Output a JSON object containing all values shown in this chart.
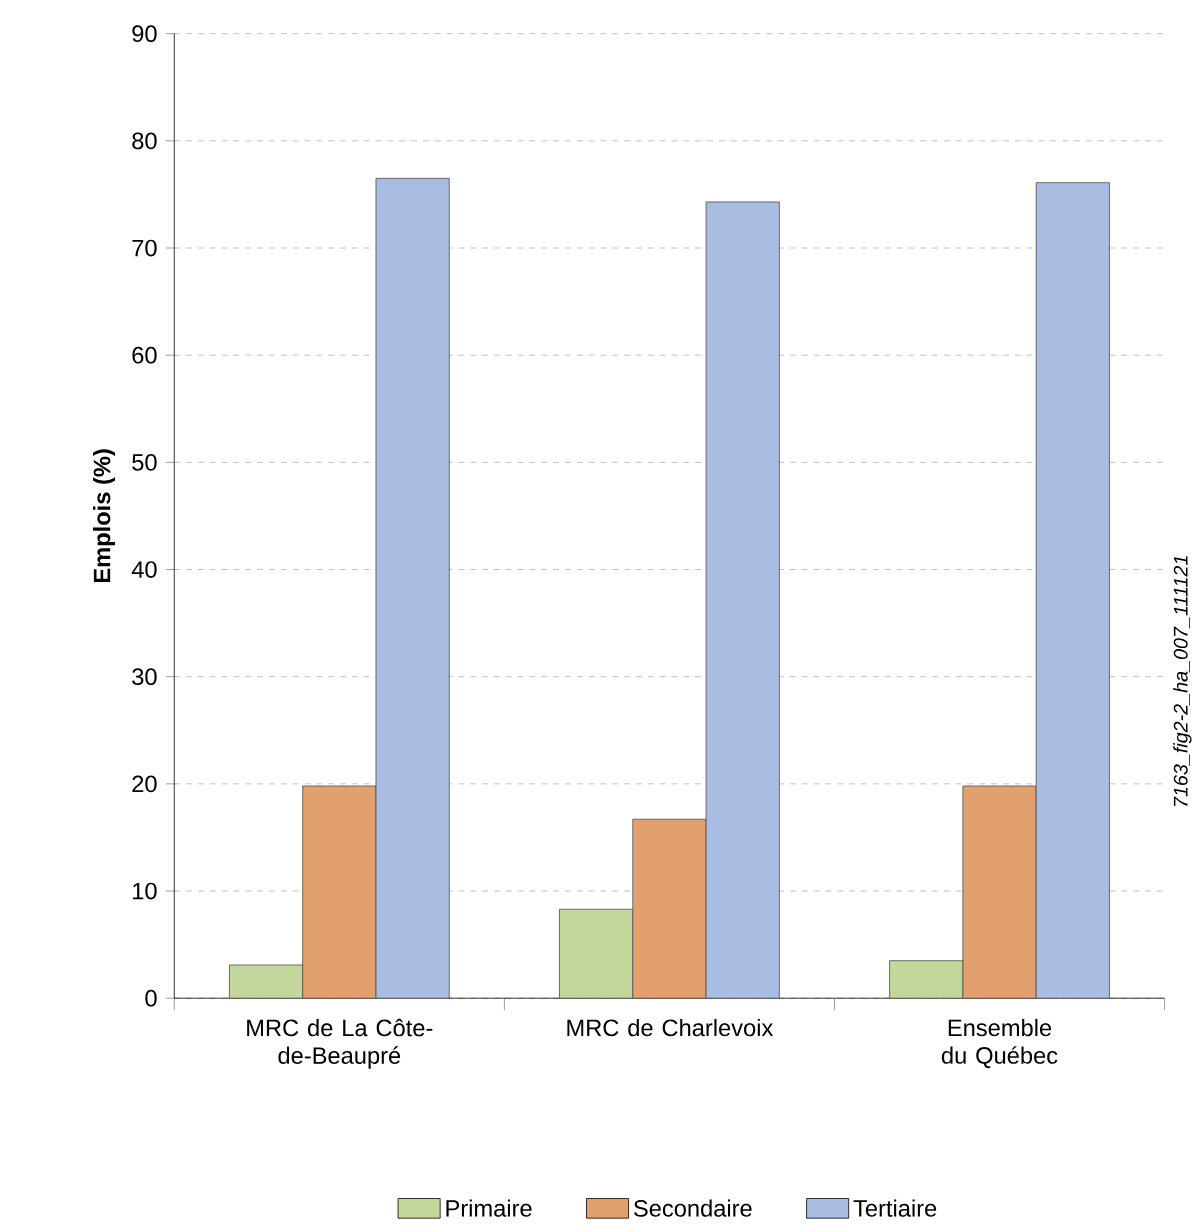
{
  "chart_data": {
    "type": "bar",
    "ylabel": "Emplois (%)",
    "categories": [
      "MRC de La Côte-de-Beaupré",
      "MRC de Charlevoix",
      "Ensemble du Québec"
    ],
    "series": [
      {
        "name": "Primaire",
        "color": "#c4d79b",
        "values": [
          3.1,
          8.3,
          3.5
        ]
      },
      {
        "name": "Secondaire",
        "color": "#e2a06e",
        "values": [
          19.8,
          16.7,
          19.8
        ]
      },
      {
        "name": "Tertiaire",
        "color": "#a9bde2",
        "values": [
          76.5,
          74.3,
          76.1
        ]
      }
    ],
    "ylim": [
      0,
      90
    ],
    "yticks": [
      0,
      10,
      20,
      30,
      40,
      50,
      60,
      70,
      80,
      90
    ],
    "grid": "y",
    "legend": "bottom",
    "annotations": [
      "7163_fig2-2_ha_007_111121"
    ]
  }
}
